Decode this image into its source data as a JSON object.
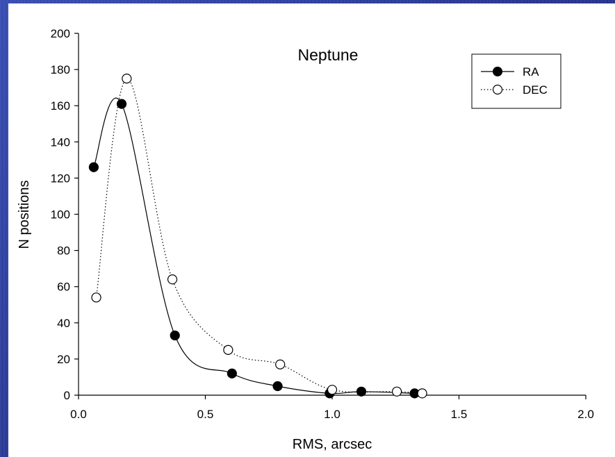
{
  "chart_data": {
    "type": "line",
    "title": "Neptune",
    "xlabel": "RMS, arcsec",
    "ylabel": "N positions",
    "xlim": [
      0.0,
      2.0
    ],
    "ylim": [
      0,
      200
    ],
    "x_ticks": [
      "0.0",
      "0.5",
      "1.0",
      "1.5",
      "2.0"
    ],
    "y_ticks": [
      "0",
      "20",
      "40",
      "60",
      "80",
      "100",
      "120",
      "140",
      "160",
      "180",
      "200"
    ],
    "grid": false,
    "legend_position": "top-right",
    "series": [
      {
        "name": "RA",
        "marker": "filled-circle",
        "line": "solid",
        "x": [
          0.06,
          0.17,
          0.38,
          0.605,
          0.785,
          0.99,
          1.115,
          1.325
        ],
        "y": [
          126,
          161,
          33,
          12,
          5,
          1,
          2,
          1
        ]
      },
      {
        "name": "DEC",
        "marker": "open-circle",
        "line": "dotted",
        "x": [
          0.07,
          0.19,
          0.37,
          0.59,
          0.795,
          1.0,
          1.255,
          1.355
        ],
        "y": [
          54,
          175,
          64,
          25,
          17,
          3,
          2,
          1
        ]
      }
    ]
  }
}
